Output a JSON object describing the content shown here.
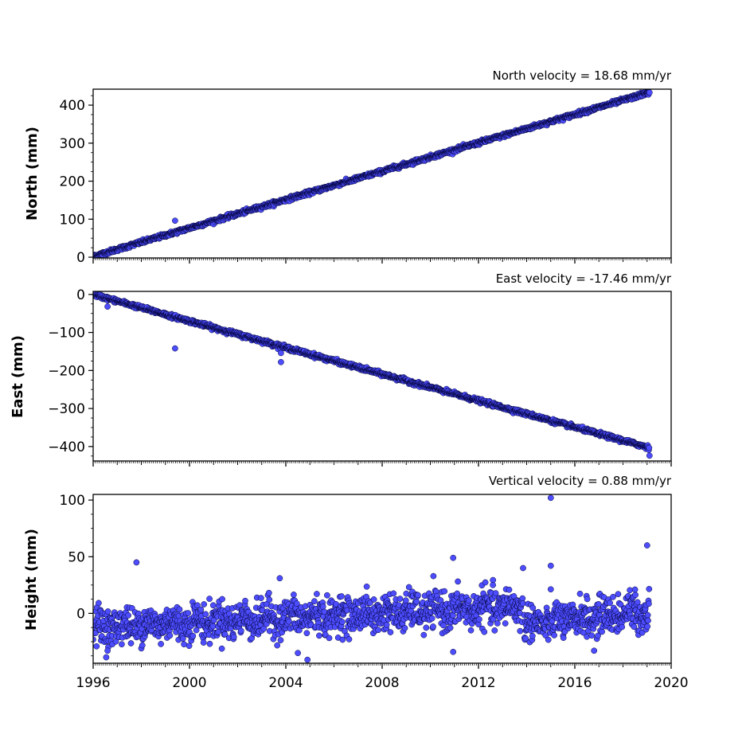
{
  "chart_data": [
    {
      "type": "scatter",
      "name": "north-panel",
      "velocity_text": "North velocity = 18.68 mm/yr",
      "ylabel": "North (mm)",
      "ylim": [
        -2,
        442
      ],
      "xlim": [
        1996,
        2020
      ],
      "yticks": [
        0,
        100,
        200,
        300,
        400
      ],
      "ytick_labels": [
        "0",
        "100",
        "200",
        "300",
        "400"
      ],
      "show_xtick_labels": false,
      "trend": {
        "start_year": 1996.0,
        "start_value": 2,
        "velocity_mm_per_yr": 18.68,
        "end_year": 2019.1
      },
      "noise_amplitude": 2.5,
      "outliers": [
        {
          "x": 1999.4,
          "y": 96
        },
        {
          "x": 2019.1,
          "y": 433
        }
      ],
      "marker_color": "#4d4dff",
      "edge_color": "#000033"
    },
    {
      "type": "scatter",
      "name": "east-panel",
      "velocity_text": "East velocity = -17.46 mm/yr",
      "ylabel": "East (mm)",
      "ylim": [
        -438,
        8
      ],
      "xlim": [
        1996,
        2020
      ],
      "yticks": [
        0,
        -100,
        -200,
        -300,
        -400
      ],
      "ytick_labels": [
        "0",
        "−100",
        "−200",
        "−300",
        "−400"
      ],
      "show_xtick_labels": false,
      "trend": {
        "start_year": 1996.0,
        "start_value": 0,
        "velocity_mm_per_yr": -17.46,
        "end_year": 2019.1
      },
      "noise_amplitude": 2.5,
      "outliers": [
        {
          "x": 1996.6,
          "y": -32
        },
        {
          "x": 1999.4,
          "y": -142
        },
        {
          "x": 2003.8,
          "y": -154
        },
        {
          "x": 2003.8,
          "y": -178
        },
        {
          "x": 2019.1,
          "y": -424
        }
      ],
      "marker_color": "#4d4dff",
      "edge_color": "#000033"
    },
    {
      "type": "scatter",
      "name": "height-panel",
      "velocity_text": "Vertical velocity = 0.88 mm/yr",
      "ylabel": "Height (mm)",
      "ylim": [
        -44,
        105
      ],
      "xlim": [
        1996,
        2020
      ],
      "yticks": [
        0,
        50,
        100
      ],
      "ytick_labels": [
        "0",
        "50",
        "100"
      ],
      "show_xtick_labels": true,
      "xticks": [
        1996,
        2000,
        2004,
        2008,
        2012,
        2016,
        2020
      ],
      "xtick_labels": [
        "1996",
        "2000",
        "2004",
        "2008",
        "2012",
        "2016",
        "2020"
      ],
      "segments": [
        {
          "start_year": 1996.0,
          "end_year": 2013.85,
          "start_value": -12,
          "end_value": 6
        },
        {
          "start_year": 2013.9,
          "end_year": 2019.1,
          "start_value": -10,
          "end_value": 2
        }
      ],
      "noise_amplitude": 8,
      "outliers": [
        {
          "x": 1997.8,
          "y": 45
        },
        {
          "x": 2003.75,
          "y": 31
        },
        {
          "x": 2004.9,
          "y": -41
        },
        {
          "x": 2004.5,
          "y": -35
        },
        {
          "x": 2010.95,
          "y": 49
        },
        {
          "x": 2010.95,
          "y": -34
        },
        {
          "x": 2013.85,
          "y": 40
        },
        {
          "x": 2015.0,
          "y": 102
        },
        {
          "x": 2015.0,
          "y": 42
        },
        {
          "x": 2019.0,
          "y": 60
        },
        {
          "x": 2018.5,
          "y": 21
        },
        {
          "x": 2017.8,
          "y": 17
        },
        {
          "x": 2012.6,
          "y": 25
        },
        {
          "x": 2016.8,
          "y": -33
        },
        {
          "x": 1996.6,
          "y": -33
        }
      ],
      "marker_color": "#4d4dff",
      "edge_color": "#000033"
    }
  ]
}
